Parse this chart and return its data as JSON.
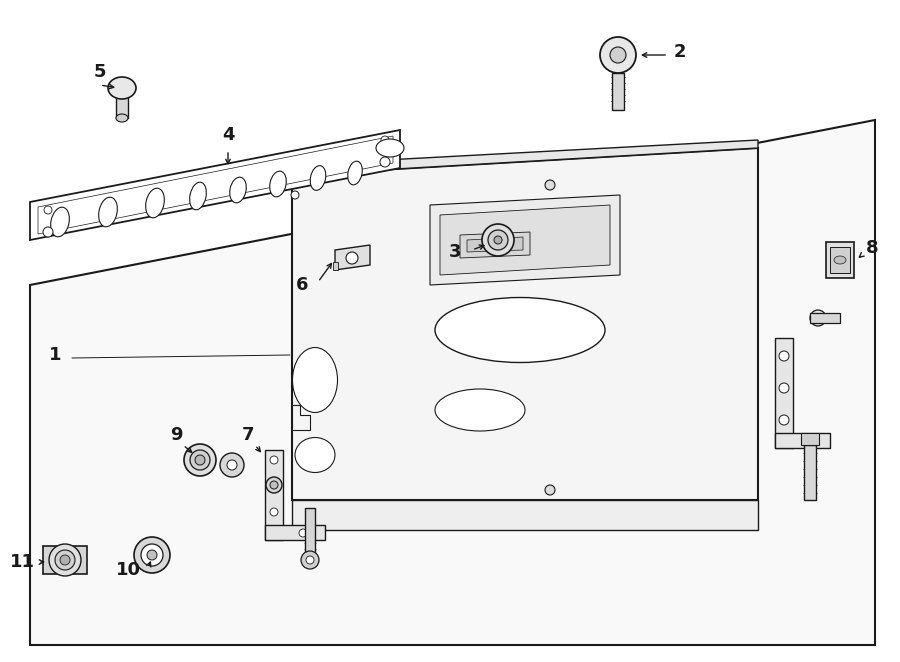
{
  "bg": "#ffffff",
  "lc": "#1a1a1a",
  "fig_w": 9.0,
  "fig_h": 6.62,
  "dpi": 100
}
